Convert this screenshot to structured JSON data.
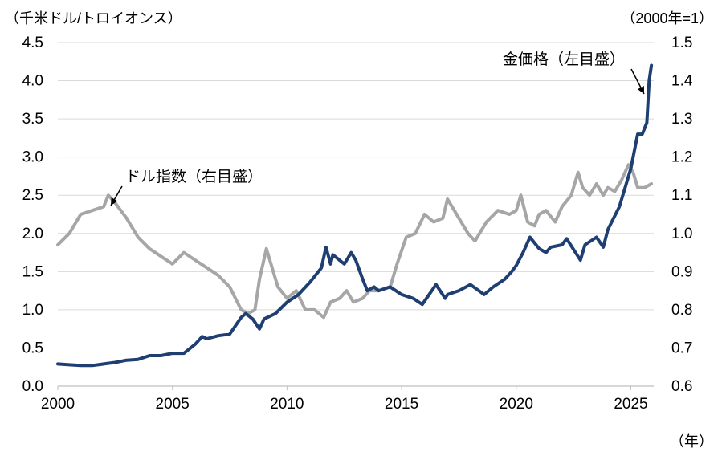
{
  "chart_data": {
    "type": "line",
    "left_unit_label": "（千米ドル/トロイオンス）",
    "right_unit_label": "（2000年=1）",
    "x_unit_label": "（年）",
    "x_range": [
      2000,
      2026
    ],
    "x_ticks": [
      2000,
      2005,
      2010,
      2015,
      2020,
      2025
    ],
    "y_left": {
      "range": [
        0.0,
        4.5
      ],
      "ticks": [
        "0.0",
        "0.5",
        "1.0",
        "1.5",
        "2.0",
        "2.5",
        "3.0",
        "3.5",
        "4.0",
        "4.5"
      ]
    },
    "y_right": {
      "range": [
        0.6,
        1.5
      ],
      "ticks": [
        "0.6",
        "0.7",
        "0.8",
        "0.9",
        "1.0",
        "1.1",
        "1.2",
        "1.3",
        "1.4",
        "1.5"
      ]
    },
    "grid": true,
    "colors": {
      "gold": "#1f3f73",
      "dollar": "#a6a6a6",
      "grid": "#d9d9d9"
    },
    "series": [
      {
        "name": "金価格（左目盛）",
        "axis": "left",
        "annotation": "金価格（左目盛）",
        "points": [
          [
            2000.0,
            0.29
          ],
          [
            2000.5,
            0.28
          ],
          [
            2001.0,
            0.27
          ],
          [
            2001.5,
            0.27
          ],
          [
            2002.0,
            0.29
          ],
          [
            2002.5,
            0.31
          ],
          [
            2003.0,
            0.34
          ],
          [
            2003.5,
            0.35
          ],
          [
            2004.0,
            0.4
          ],
          [
            2004.5,
            0.4
          ],
          [
            2005.0,
            0.43
          ],
          [
            2005.5,
            0.43
          ],
          [
            2006.0,
            0.55
          ],
          [
            2006.3,
            0.65
          ],
          [
            2006.5,
            0.62
          ],
          [
            2007.0,
            0.66
          ],
          [
            2007.5,
            0.68
          ],
          [
            2008.0,
            0.9
          ],
          [
            2008.2,
            0.95
          ],
          [
            2008.5,
            0.88
          ],
          [
            2008.8,
            0.75
          ],
          [
            2009.0,
            0.88
          ],
          [
            2009.5,
            0.95
          ],
          [
            2010.0,
            1.1
          ],
          [
            2010.5,
            1.2
          ],
          [
            2011.0,
            1.36
          ],
          [
            2011.5,
            1.55
          ],
          [
            2011.7,
            1.82
          ],
          [
            2011.9,
            1.6
          ],
          [
            2012.0,
            1.72
          ],
          [
            2012.5,
            1.6
          ],
          [
            2012.8,
            1.75
          ],
          [
            2013.0,
            1.65
          ],
          [
            2013.3,
            1.4
          ],
          [
            2013.5,
            1.25
          ],
          [
            2013.8,
            1.3
          ],
          [
            2014.0,
            1.25
          ],
          [
            2014.5,
            1.3
          ],
          [
            2015.0,
            1.2
          ],
          [
            2015.5,
            1.15
          ],
          [
            2015.9,
            1.07
          ],
          [
            2016.5,
            1.33
          ],
          [
            2016.9,
            1.15
          ],
          [
            2017.0,
            1.2
          ],
          [
            2017.5,
            1.25
          ],
          [
            2018.0,
            1.33
          ],
          [
            2018.6,
            1.2
          ],
          [
            2019.0,
            1.3
          ],
          [
            2019.5,
            1.4
          ],
          [
            2019.8,
            1.5
          ],
          [
            2020.0,
            1.58
          ],
          [
            2020.3,
            1.75
          ],
          [
            2020.6,
            1.95
          ],
          [
            2021.0,
            1.8
          ],
          [
            2021.3,
            1.75
          ],
          [
            2021.5,
            1.82
          ],
          [
            2022.0,
            1.85
          ],
          [
            2022.2,
            1.93
          ],
          [
            2022.8,
            1.65
          ],
          [
            2023.0,
            1.85
          ],
          [
            2023.5,
            1.95
          ],
          [
            2023.8,
            1.82
          ],
          [
            2024.0,
            2.05
          ],
          [
            2024.5,
            2.35
          ],
          [
            2024.8,
            2.65
          ],
          [
            2025.0,
            2.85
          ],
          [
            2025.3,
            3.3
          ],
          [
            2025.5,
            3.3
          ],
          [
            2025.7,
            3.45
          ],
          [
            2025.8,
            4.0
          ],
          [
            2025.9,
            4.2
          ]
        ]
      },
      {
        "name": "ドル指数（右目盛）",
        "axis": "right",
        "annotation": "ドル指数（右目盛）",
        "points": [
          [
            2000.0,
            0.97
          ],
          [
            2000.5,
            1.0
          ],
          [
            2001.0,
            1.05
          ],
          [
            2001.5,
            1.06
          ],
          [
            2002.0,
            1.07
          ],
          [
            2002.2,
            1.1
          ],
          [
            2002.5,
            1.08
          ],
          [
            2003.0,
            1.04
          ],
          [
            2003.5,
            0.99
          ],
          [
            2004.0,
            0.96
          ],
          [
            2004.5,
            0.94
          ],
          [
            2005.0,
            0.92
          ],
          [
            2005.5,
            0.95
          ],
          [
            2006.0,
            0.93
          ],
          [
            2006.5,
            0.91
          ],
          [
            2007.0,
            0.89
          ],
          [
            2007.5,
            0.86
          ],
          [
            2008.0,
            0.8
          ],
          [
            2008.3,
            0.79
          ],
          [
            2008.6,
            0.8
          ],
          [
            2008.8,
            0.88
          ],
          [
            2009.1,
            0.96
          ],
          [
            2009.3,
            0.92
          ],
          [
            2009.6,
            0.86
          ],
          [
            2010.0,
            0.83
          ],
          [
            2010.4,
            0.85
          ],
          [
            2010.8,
            0.8
          ],
          [
            2011.2,
            0.8
          ],
          [
            2011.6,
            0.78
          ],
          [
            2011.9,
            0.82
          ],
          [
            2012.3,
            0.83
          ],
          [
            2012.6,
            0.85
          ],
          [
            2012.9,
            0.82
          ],
          [
            2013.3,
            0.83
          ],
          [
            2013.6,
            0.85
          ],
          [
            2014.0,
            0.85
          ],
          [
            2014.5,
            0.86
          ],
          [
            2014.8,
            0.92
          ],
          [
            2015.2,
            0.99
          ],
          [
            2015.6,
            1.0
          ],
          [
            2016.0,
            1.05
          ],
          [
            2016.4,
            1.03
          ],
          [
            2016.8,
            1.04
          ],
          [
            2017.0,
            1.09
          ],
          [
            2017.5,
            1.04
          ],
          [
            2017.9,
            1.0
          ],
          [
            2018.2,
            0.98
          ],
          [
            2018.7,
            1.03
          ],
          [
            2019.2,
            1.06
          ],
          [
            2019.7,
            1.05
          ],
          [
            2020.0,
            1.06
          ],
          [
            2020.2,
            1.1
          ],
          [
            2020.5,
            1.03
          ],
          [
            2020.8,
            1.02
          ],
          [
            2021.0,
            1.05
          ],
          [
            2021.3,
            1.06
          ],
          [
            2021.7,
            1.03
          ],
          [
            2022.0,
            1.07
          ],
          [
            2022.4,
            1.1
          ],
          [
            2022.7,
            1.16
          ],
          [
            2022.9,
            1.12
          ],
          [
            2023.2,
            1.1
          ],
          [
            2023.5,
            1.13
          ],
          [
            2023.8,
            1.1
          ],
          [
            2024.0,
            1.12
          ],
          [
            2024.3,
            1.11
          ],
          [
            2024.6,
            1.14
          ],
          [
            2024.9,
            1.18
          ],
          [
            2025.1,
            1.16
          ],
          [
            2025.3,
            1.12
          ],
          [
            2025.6,
            1.12
          ],
          [
            2025.9,
            1.13
          ]
        ]
      }
    ]
  }
}
